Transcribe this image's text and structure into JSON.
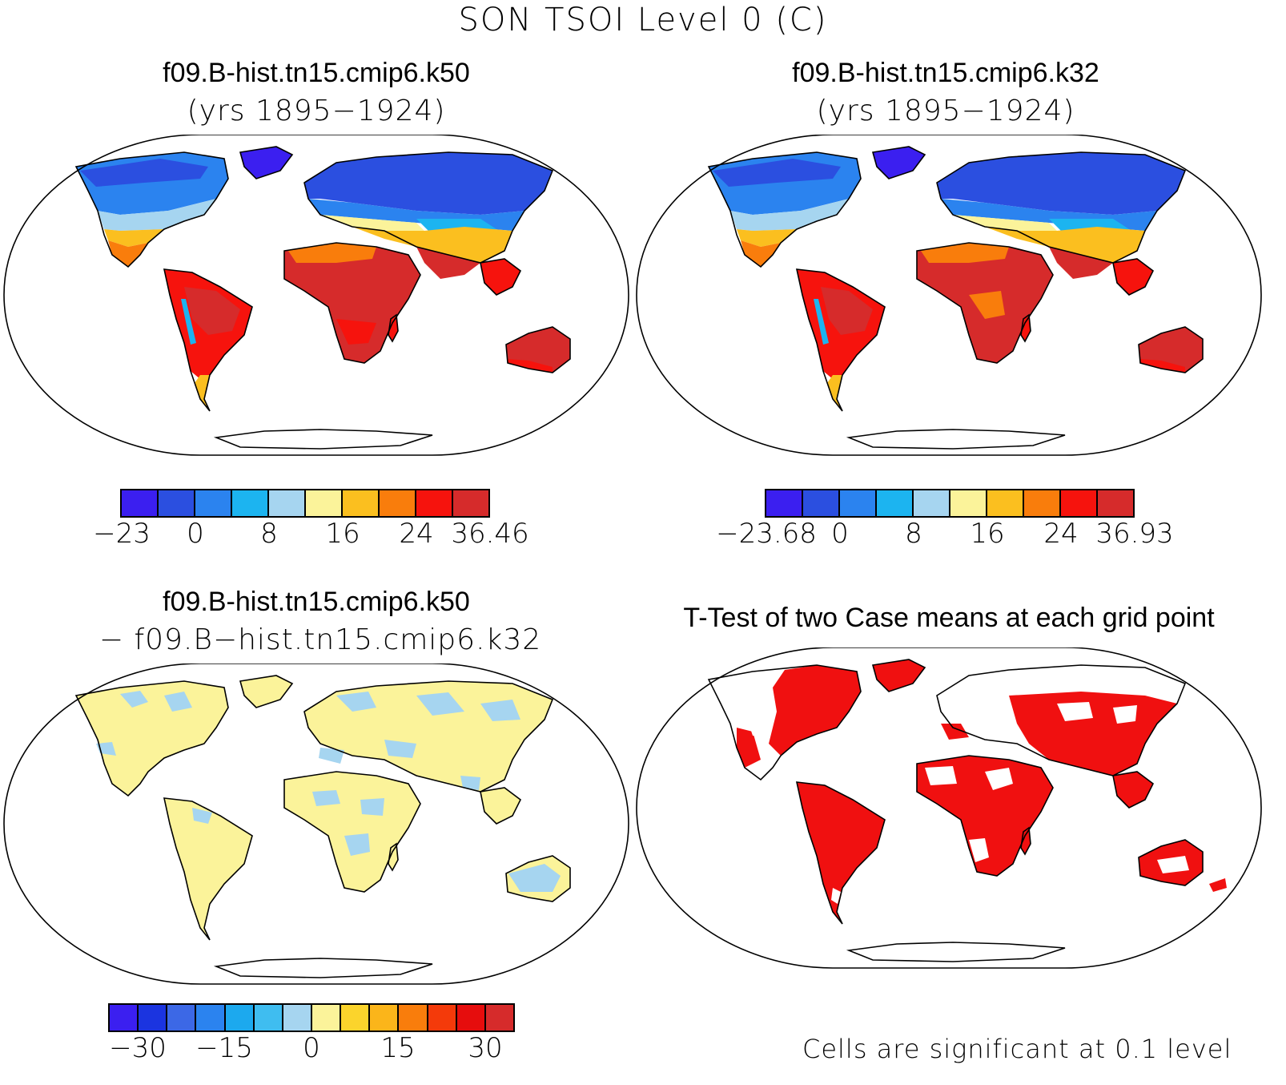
{
  "figure": {
    "title": "SON TSOI Level 0 (C)"
  },
  "panels": [
    {
      "id": "case1",
      "title": "f09.B-hist.tn15.cmip6.k50",
      "subtitle": "(yrs 1895−1924)",
      "colorbar": {
        "colors": [
          "#3b1ff0",
          "#2b4fe0",
          "#2b83ef",
          "#1cb4f0",
          "#a6d5f0",
          "#fbf39a",
          "#fbbf1f",
          "#f97d0c",
          "#f6130d",
          "#d62b2b"
        ],
        "tick_labels": [
          "−23",
          "0",
          "8",
          "16",
          "24",
          "36.46"
        ]
      }
    },
    {
      "id": "case2",
      "title": "f09.B-hist.tn15.cmip6.k32",
      "subtitle": "(yrs 1895−1924)",
      "colorbar": {
        "colors": [
          "#3b1ff0",
          "#2b4fe0",
          "#2b83ef",
          "#1cb4f0",
          "#a6d5f0",
          "#fbf39a",
          "#fbbf1f",
          "#f97d0c",
          "#f6130d",
          "#d62b2b"
        ],
        "tick_labels": [
          "−23.68",
          "0",
          "8",
          "16",
          "24",
          "36.93"
        ]
      }
    },
    {
      "id": "difference",
      "title": "f09.B-hist.tn15.cmip6.k50",
      "subtitle": "− f09.B−hist.tn15.cmip6.k32",
      "colorbar": {
        "colors": [
          "#3b1ff0",
          "#1b34e0",
          "#3c68e6",
          "#2b83ef",
          "#1ca9ee",
          "#3fbdf0",
          "#a6d5f0",
          "#fbf39a",
          "#fbd42c",
          "#fbb51a",
          "#f97d0c",
          "#f43a0a",
          "#e60d0d",
          "#d62b2b"
        ],
        "tick_labels": [
          "−30",
          "−15",
          "0",
          "15",
          "30"
        ]
      }
    },
    {
      "id": "ttest",
      "title": "T-Test of two Case means at each grid point",
      "note": "Cells are significant at 0.1 level",
      "significant_color": "#f01010"
    }
  ]
}
